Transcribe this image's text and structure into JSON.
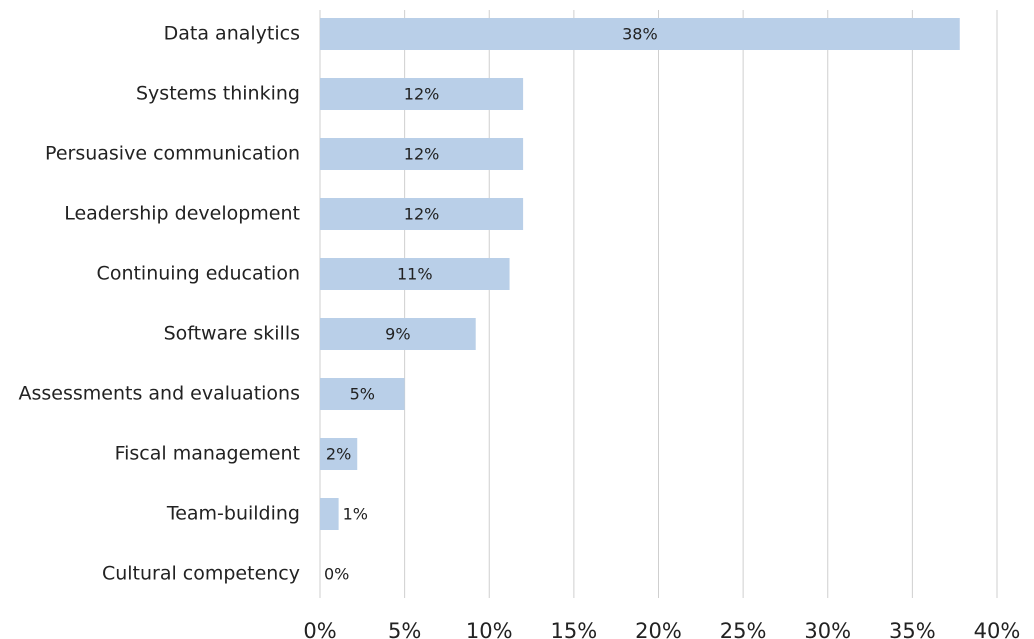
{
  "chart_data": {
    "type": "barh",
    "categories": [
      "Data analytics",
      "Systems thinking",
      "Persuasive communication",
      "Leadership development",
      "Continuing education",
      "Software skills",
      "Assessments and evaluations",
      "Fiscal management",
      "Team-building",
      "Cultural competency"
    ],
    "values": [
      37.8,
      12,
      12,
      12,
      11.2,
      9.2,
      5,
      2.2,
      1.1,
      0
    ],
    "value_labels": [
      "38%",
      "12%",
      "12%",
      "12%",
      "11%",
      "9%",
      "5%",
      "2%",
      "1%",
      "0%"
    ],
    "color": "#b9cfe8",
    "xlim": [
      0,
      40
    ],
    "xticks": [
      {
        "value": 0,
        "label": "0%"
      },
      {
        "value": 5,
        "label": "5%"
      },
      {
        "value": 10,
        "label": "10%"
      },
      {
        "value": 15,
        "label": "15%"
      },
      {
        "value": 20,
        "label": "20%"
      },
      {
        "value": 25,
        "label": "25%"
      },
      {
        "value": 30,
        "label": "30%"
      },
      {
        "value": 35,
        "label": "35%"
      },
      {
        "value": 40,
        "label": "40%"
      }
    ],
    "grid": true
  }
}
